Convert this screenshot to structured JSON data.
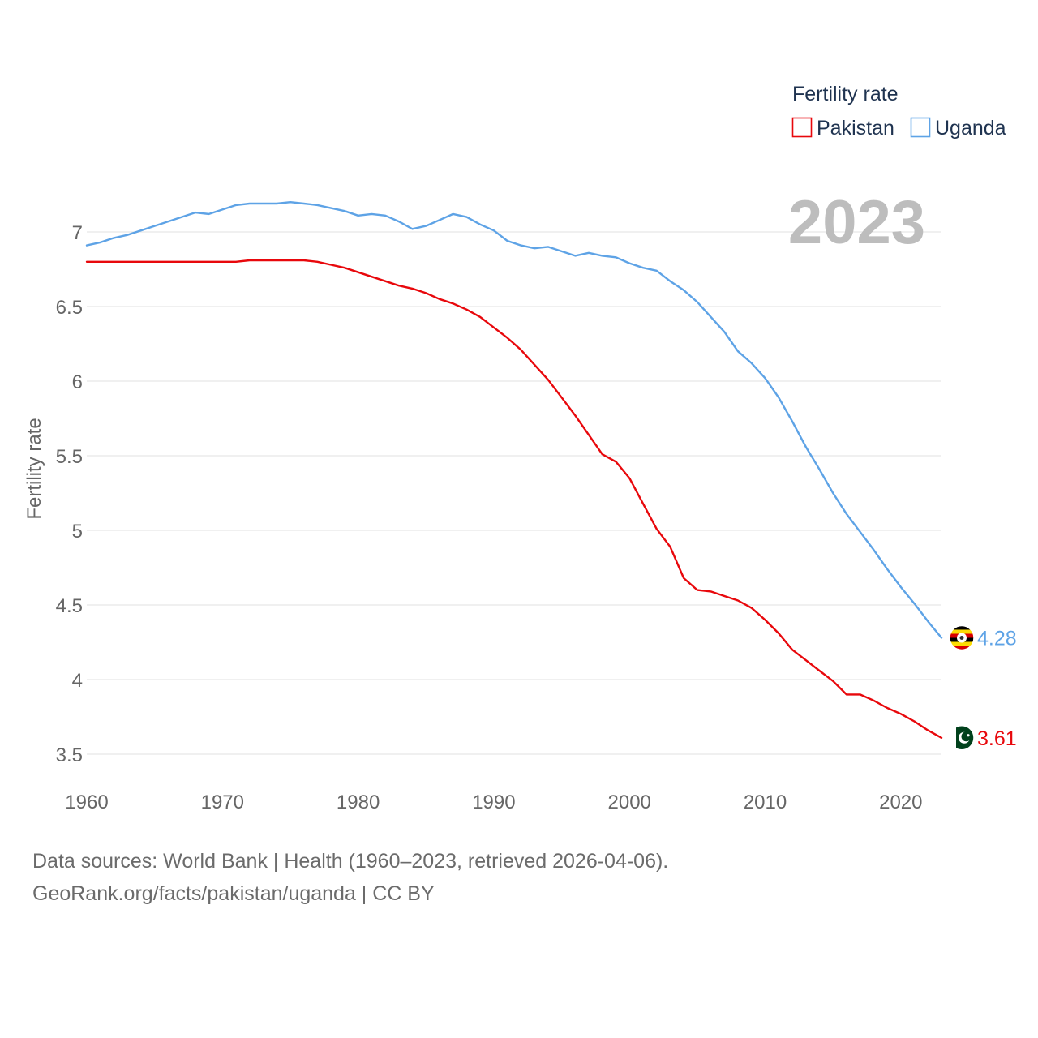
{
  "chart_data": {
    "type": "line",
    "ylabel": "Fertility rate",
    "xlabel": "",
    "xlim": [
      1960,
      2023
    ],
    "ylim": [
      3.5,
      7.2
    ],
    "yticks": [
      3.5,
      4,
      4.5,
      5,
      5.5,
      6,
      6.5,
      7
    ],
    "ytick_labels": [
      "3.5",
      "4",
      "4.5",
      "5",
      "5.5",
      "6",
      "6.5",
      "7"
    ],
    "xticks": [
      1960,
      1970,
      1980,
      1990,
      2000,
      2010,
      2020
    ],
    "xtick_labels": [
      "1960",
      "1970",
      "1980",
      "1990",
      "2000",
      "2010",
      "2020"
    ],
    "grid": true,
    "legend": {
      "title": "Fertility rate",
      "placement": "top-right"
    },
    "year_badge": "2023",
    "x": [
      1960,
      1961,
      1962,
      1963,
      1964,
      1965,
      1966,
      1967,
      1968,
      1969,
      1970,
      1971,
      1972,
      1973,
      1974,
      1975,
      1976,
      1977,
      1978,
      1979,
      1980,
      1981,
      1982,
      1983,
      1984,
      1985,
      1986,
      1987,
      1988,
      1989,
      1990,
      1991,
      1992,
      1993,
      1994,
      1995,
      1996,
      1997,
      1998,
      1999,
      2000,
      2001,
      2002,
      2003,
      2004,
      2005,
      2006,
      2007,
      2008,
      2009,
      2010,
      2011,
      2012,
      2013,
      2014,
      2015,
      2016,
      2017,
      2018,
      2019,
      2020,
      2021,
      2022,
      2023
    ],
    "series": [
      {
        "name": "Pakistan",
        "color": "#e8080c",
        "end_label": "3.61",
        "flag": "pakistan-flag",
        "values": [
          6.8,
          6.8,
          6.8,
          6.8,
          6.8,
          6.8,
          6.8,
          6.8,
          6.8,
          6.8,
          6.8,
          6.8,
          6.81,
          6.81,
          6.81,
          6.81,
          6.81,
          6.8,
          6.78,
          6.76,
          6.73,
          6.7,
          6.67,
          6.64,
          6.62,
          6.59,
          6.55,
          6.52,
          6.48,
          6.43,
          6.36,
          6.29,
          6.21,
          6.11,
          6.01,
          5.89,
          5.77,
          5.64,
          5.51,
          5.46,
          5.35,
          5.18,
          5.01,
          4.89,
          4.68,
          4.6,
          4.59,
          4.56,
          4.53,
          4.48,
          4.4,
          4.31,
          4.2,
          4.13,
          4.06,
          3.99,
          3.9,
          3.9,
          3.86,
          3.81,
          3.77,
          3.72,
          3.66,
          3.61
        ]
      },
      {
        "name": "Uganda",
        "color": "#5ea3e6",
        "end_label": "4.28",
        "flag": "uganda-flag",
        "values": [
          6.91,
          6.93,
          6.96,
          6.98,
          7.01,
          7.04,
          7.07,
          7.1,
          7.13,
          7.12,
          7.15,
          7.18,
          7.19,
          7.19,
          7.19,
          7.2,
          7.19,
          7.18,
          7.16,
          7.14,
          7.11,
          7.12,
          7.11,
          7.07,
          7.02,
          7.04,
          7.08,
          7.12,
          7.1,
          7.05,
          7.01,
          6.94,
          6.91,
          6.89,
          6.9,
          6.87,
          6.84,
          6.86,
          6.84,
          6.83,
          6.79,
          6.76,
          6.74,
          6.67,
          6.61,
          6.53,
          6.43,
          6.33,
          6.2,
          6.12,
          6.02,
          5.89,
          5.73,
          5.56,
          5.41,
          5.25,
          5.11,
          4.99,
          4.87,
          4.74,
          4.62,
          4.51,
          4.39,
          4.28
        ]
      }
    ]
  },
  "footer": {
    "line1": "Data sources: World Bank | Health (1960–2023, retrieved 2026-04-06).",
    "line2": "GeoRank.org/facts/pakistan/uganda | CC BY"
  }
}
